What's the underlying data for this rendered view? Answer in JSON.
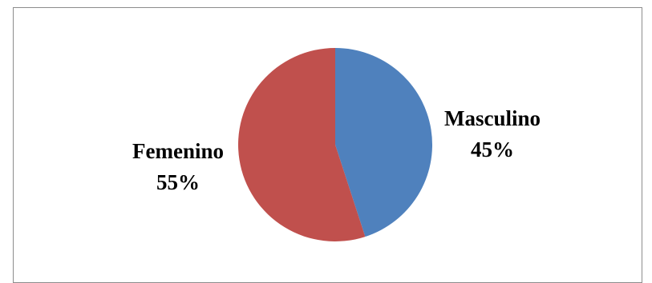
{
  "chart_data": {
    "type": "pie",
    "categories": [
      "Masculino",
      "Femenino"
    ],
    "values": [
      45,
      55
    ],
    "percent_labels": [
      "45%",
      "55%"
    ],
    "colors": [
      "#4f81bd",
      "#c0504d"
    ],
    "start": "top",
    "direction": "clockwise",
    "legend": "none"
  }
}
